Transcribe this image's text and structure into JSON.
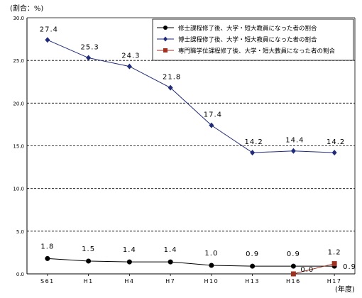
{
  "chart_data": {
    "type": "line",
    "title": "",
    "ylabel": "(割合：%)",
    "xlabel": "(年度)",
    "categories": [
      "S61",
      "H1",
      "H4",
      "H7",
      "H10",
      "H13",
      "H16",
      "H17"
    ],
    "ylim": [
      0,
      30
    ],
    "yticks": [
      "0.0",
      "5.0",
      "10.0",
      "15.0",
      "20.0",
      "25.0",
      "30.0"
    ],
    "grid": "horizontal-dashed",
    "legend_position": "top-right",
    "series": [
      {
        "name": "修士課程修了後、大学・短大教員になった者の割合",
        "marker": "circle",
        "color": "#000000",
        "x": [
          "S61",
          "H1",
          "H4",
          "H7",
          "H10",
          "H13",
          "H16",
          "H17"
        ],
        "values": [
          1.8,
          1.5,
          1.4,
          1.4,
          1.0,
          0.9,
          0.9,
          0.9
        ],
        "labels": [
          "1.8",
          "1.5",
          "1.4",
          "1.4",
          "1.0",
          "0.9",
          "0.9",
          "0.9"
        ]
      },
      {
        "name": "博士課程修了後、大学・短大教員になった者の割合",
        "marker": "diamond",
        "color": "#1f2a78",
        "x": [
          "S61",
          "H1",
          "H4",
          "H7",
          "H10",
          "H13",
          "H16",
          "H17"
        ],
        "values": [
          27.4,
          25.3,
          24.3,
          21.8,
          17.4,
          14.2,
          14.4,
          14.2
        ],
        "labels": [
          "27.4",
          "25.3",
          "24.3",
          "21.8",
          "17.4",
          "14.2",
          "14.4",
          "14.2"
        ]
      },
      {
        "name": "専門職学位課程修了後、大学・短大教員になった者の割合",
        "marker": "square",
        "color": "#a03020",
        "x": [
          "H16",
          "H17"
        ],
        "values": [
          0.0,
          1.2
        ],
        "labels": [
          "0.0",
          "1.2"
        ]
      }
    ]
  }
}
